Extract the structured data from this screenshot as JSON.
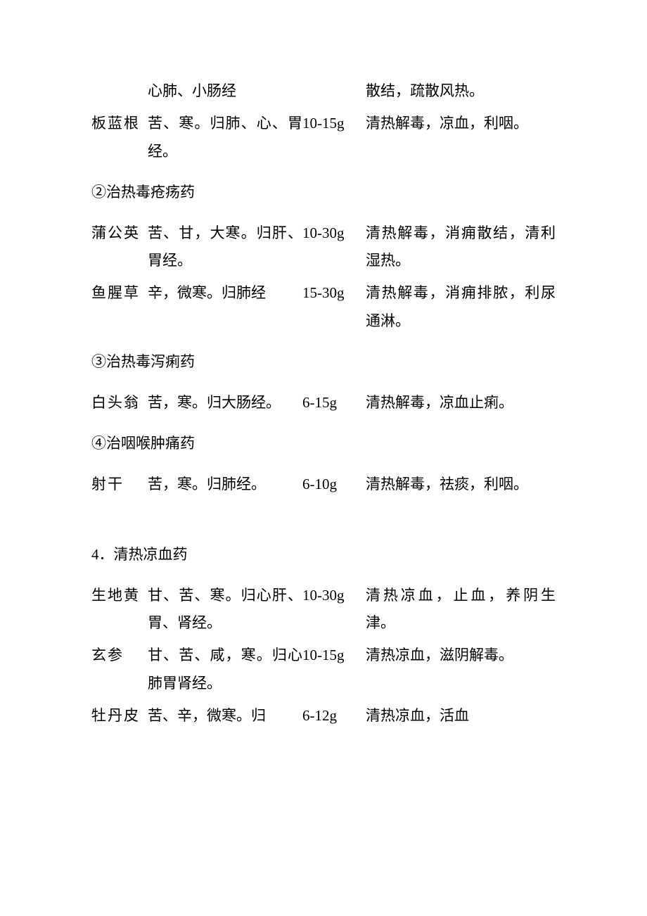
{
  "rows_top": [
    {
      "name": "",
      "prop": "心肺、小肠经",
      "dose": "",
      "func": "散结，疏散风热。"
    },
    {
      "name": "板蓝根",
      "prop": "苦、寒。归肺、心、胃经。",
      "dose": "10-15g",
      "func": "清热解毒，凉血，利咽。"
    }
  ],
  "section2_title": "②治热毒疮疡药",
  "rows_s2": [
    {
      "name": "蒲公英",
      "prop": "苦、甘，大寒。归肝、胃经。",
      "dose": "10-30g",
      "func": "清热解毒，消痈散结，清利湿热。"
    },
    {
      "name": "鱼腥草",
      "prop": "辛，微寒。归肺经",
      "dose": "15-30g",
      "func": "清热解毒，消痈排脓，利尿通淋。"
    }
  ],
  "section3_title": "③治热毒泻痢药",
  "rows_s3": [
    {
      "name": "白头翁",
      "prop": "苦，寒。归大肠经。",
      "dose": "6-15g",
      "func": "清热解毒，凉血止痢。"
    }
  ],
  "section4_title": "④治咽喉肿痛药",
  "rows_s4": [
    {
      "name": "射干",
      "prop": "苦，寒。归肺经。",
      "dose": "6-10g",
      "func": "清热解毒，祛痰，利咽。"
    }
  ],
  "section5_title": "4．清热凉血药",
  "rows_s5": [
    {
      "name": "生地黄",
      "prop": "甘、苦、寒。归心肝、胃、肾经。",
      "dose": "10-30g",
      "func": "清热凉血，止血，养阴生津。"
    },
    {
      "name": "玄参",
      "prop": "甘、苦、咸，寒。归心肺胃肾经。",
      "dose": "10-15g",
      "func": "清热凉血，滋阴解毒。"
    },
    {
      "name": "牡丹皮",
      "prop": "苦、辛，微寒。归",
      "dose": "6-12g",
      "func": "清热凉血，活血"
    }
  ]
}
